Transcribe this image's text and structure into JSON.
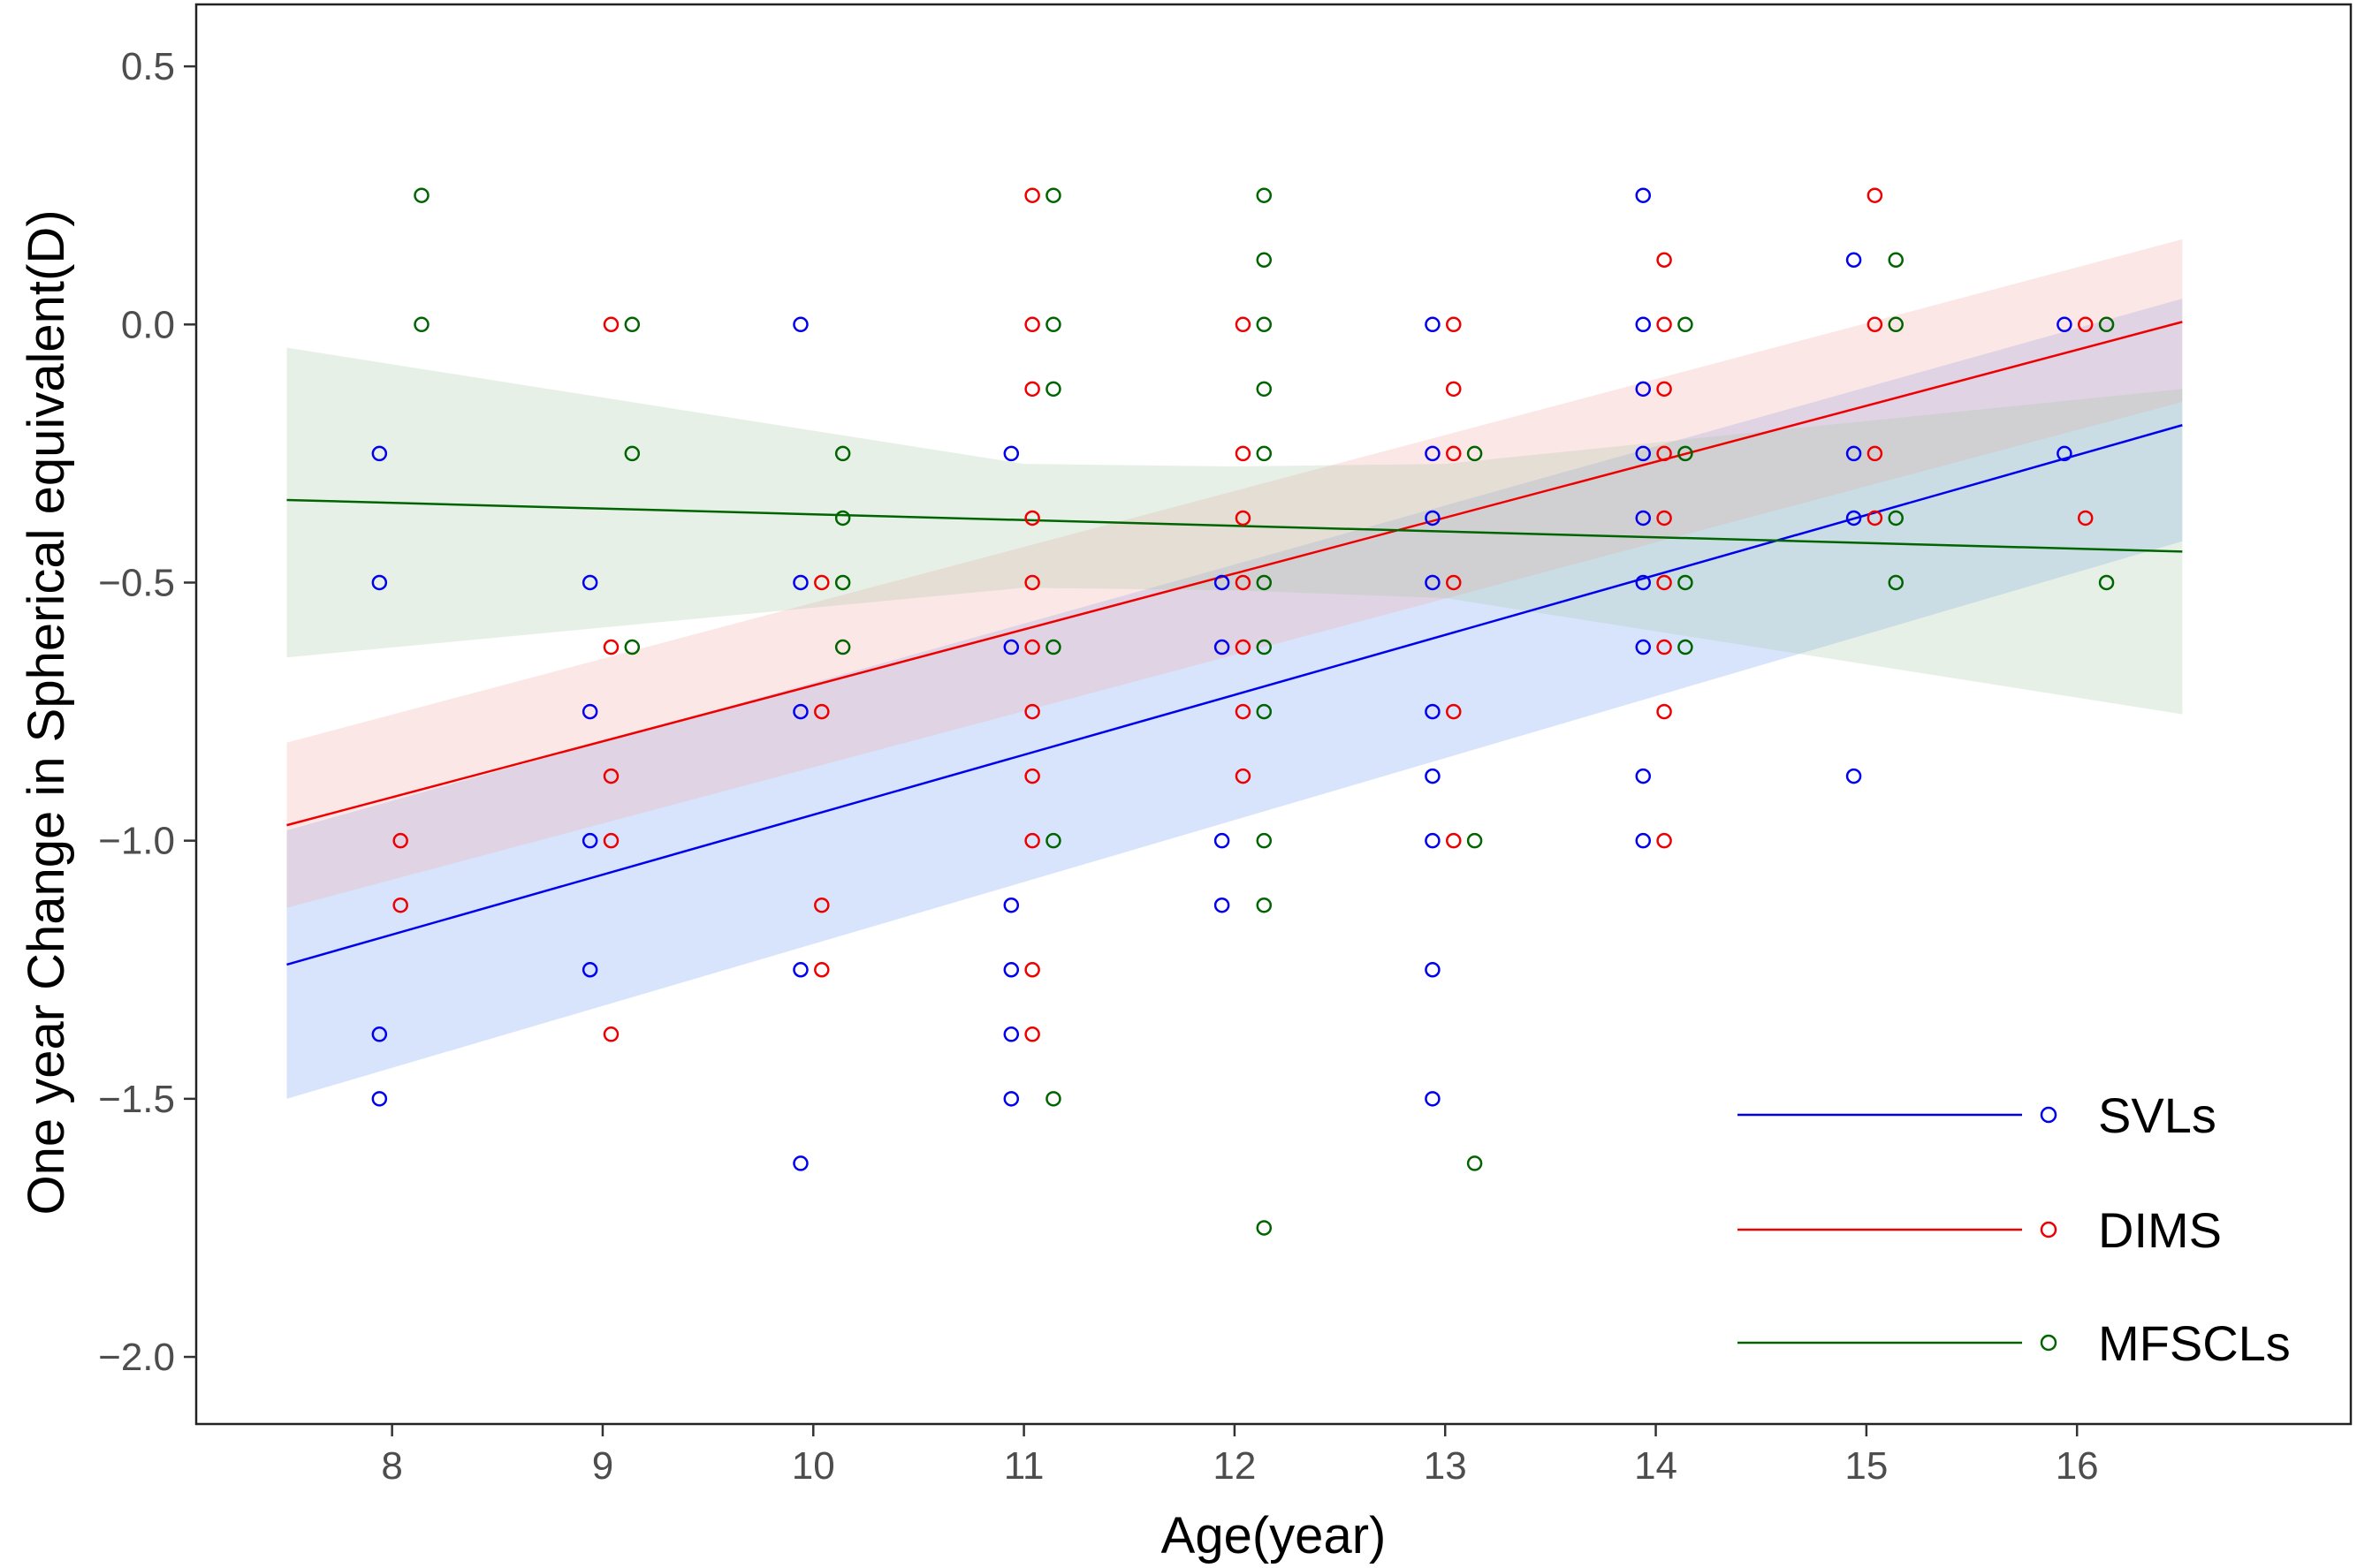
{
  "chart_data": {
    "type": "scatter",
    "xlabel": "Age(year)",
    "ylabel": "One year Change in Spherical equivalent(D)",
    "xlim": [
      7.07,
      17.3
    ],
    "ylim": [
      -2.13,
      0.62
    ],
    "xticks": [
      8,
      9,
      10,
      11,
      12,
      13,
      14,
      15,
      16
    ],
    "yticks": [
      0.5,
      0.0,
      -0.5,
      -1.0,
      -1.5,
      -2.0
    ],
    "ytick_labels": [
      "0.5",
      "0.0",
      "−0.5",
      "−1.0",
      "−1.5",
      "−2.0"
    ],
    "grid": false,
    "legend_position": "bottom-right",
    "series": [
      {
        "name": "SVLs",
        "color": "#0000ee",
        "fill_color": "#6f9ff0",
        "x_offset": -0.06,
        "points": [
          [
            8,
            -0.25
          ],
          [
            8,
            -0.5
          ],
          [
            8,
            -1.375
          ],
          [
            8,
            -1.5
          ],
          [
            9,
            -0.5
          ],
          [
            9,
            -0.75
          ],
          [
            9,
            -1.0
          ],
          [
            9,
            -1.25
          ],
          [
            10,
            0.0
          ],
          [
            10,
            -0.5
          ],
          [
            10,
            -0.75
          ],
          [
            10,
            -1.25
          ],
          [
            10,
            -1.625
          ],
          [
            11,
            -0.25
          ],
          [
            11,
            -0.625
          ],
          [
            11,
            -1.125
          ],
          [
            11,
            -1.25
          ],
          [
            11,
            -1.375
          ],
          [
            11,
            -1.5
          ],
          [
            12,
            -0.5
          ],
          [
            12,
            -0.625
          ],
          [
            12,
            -1.0
          ],
          [
            12,
            -1.125
          ],
          [
            13,
            0.0
          ],
          [
            13,
            -0.25
          ],
          [
            13,
            -0.375
          ],
          [
            13,
            -0.5
          ],
          [
            13,
            -0.75
          ],
          [
            13,
            -0.875
          ],
          [
            13,
            -1.0
          ],
          [
            13,
            -1.25
          ],
          [
            13,
            -1.5
          ],
          [
            14,
            0.25
          ],
          [
            14,
            0.0
          ],
          [
            14,
            -0.125
          ],
          [
            14,
            -0.25
          ],
          [
            14,
            -0.375
          ],
          [
            14,
            -0.5
          ],
          [
            14,
            -0.625
          ],
          [
            14,
            -0.875
          ],
          [
            14,
            -1.0
          ],
          [
            15,
            0.125
          ],
          [
            15,
            -0.25
          ],
          [
            15,
            -0.375
          ],
          [
            15,
            -0.875
          ],
          [
            16,
            0.0
          ],
          [
            16,
            -0.25
          ]
        ],
        "fit": {
          "x": [
            7.5,
            16.5
          ],
          "y": [
            -1.24,
            -0.195
          ]
        },
        "ci": {
          "x": [
            7.5,
            16.5
          ],
          "lower": [
            -1.5,
            -0.42
          ],
          "upper": [
            -0.98,
            0.05
          ]
        }
      },
      {
        "name": "DIMS",
        "color": "#ee0000",
        "fill_color": "#f6a8a8",
        "x_offset": 0.04,
        "points": [
          [
            8,
            -1.0
          ],
          [
            8,
            -1.125
          ],
          [
            9,
            0.0
          ],
          [
            9,
            -0.625
          ],
          [
            9,
            -0.875
          ],
          [
            9,
            -1.0
          ],
          [
            9,
            -1.375
          ],
          [
            10,
            -0.5
          ],
          [
            10,
            -0.75
          ],
          [
            10,
            -1.125
          ],
          [
            10,
            -1.25
          ],
          [
            11,
            0.25
          ],
          [
            11,
            0.0
          ],
          [
            11,
            -0.125
          ],
          [
            11,
            -0.375
          ],
          [
            11,
            -0.5
          ],
          [
            11,
            -0.625
          ],
          [
            11,
            -0.75
          ],
          [
            11,
            -0.875
          ],
          [
            11,
            -1.0
          ],
          [
            11,
            -1.25
          ],
          [
            11,
            -1.375
          ],
          [
            12,
            0.0
          ],
          [
            12,
            -0.25
          ],
          [
            12,
            -0.375
          ],
          [
            12,
            -0.5
          ],
          [
            12,
            -0.625
          ],
          [
            12,
            -0.75
          ],
          [
            12,
            -0.875
          ],
          [
            13,
            0.0
          ],
          [
            13,
            -0.125
          ],
          [
            13,
            -0.25
          ],
          [
            13,
            -0.5
          ],
          [
            13,
            -0.75
          ],
          [
            13,
            -1.0
          ],
          [
            14,
            0.125
          ],
          [
            14,
            0.0
          ],
          [
            14,
            -0.125
          ],
          [
            14,
            -0.25
          ],
          [
            14,
            -0.375
          ],
          [
            14,
            -0.5
          ],
          [
            14,
            -0.625
          ],
          [
            14,
            -0.75
          ],
          [
            14,
            -1.0
          ],
          [
            15,
            0.25
          ],
          [
            15,
            0.0
          ],
          [
            15,
            -0.25
          ],
          [
            15,
            -0.375
          ],
          [
            16,
            0.0
          ],
          [
            16,
            -0.375
          ]
        ],
        "fit": {
          "x": [
            7.5,
            16.5
          ],
          "y": [
            -0.97,
            0.005
          ]
        },
        "ci": {
          "x": [
            7.5,
            16.5
          ],
          "lower": [
            -1.13,
            -0.15
          ],
          "upper": [
            -0.81,
            0.165
          ]
        }
      },
      {
        "name": "MFSCLs",
        "color": "#006400",
        "fill_color": "#a8c9a8",
        "x_offset": 0.14,
        "points": [
          [
            8,
            0.25
          ],
          [
            8,
            0.0
          ],
          [
            9,
            0.0
          ],
          [
            9,
            -0.25
          ],
          [
            9,
            -0.625
          ],
          [
            10,
            -0.25
          ],
          [
            10,
            -0.375
          ],
          [
            10,
            -0.5
          ],
          [
            10,
            -0.625
          ],
          [
            11,
            0.25
          ],
          [
            11,
            0.0
          ],
          [
            11,
            -0.125
          ],
          [
            11,
            -0.625
          ],
          [
            11,
            -1.0
          ],
          [
            11,
            -1.5
          ],
          [
            12,
            0.25
          ],
          [
            12,
            0.125
          ],
          [
            12,
            0.0
          ],
          [
            12,
            -0.125
          ],
          [
            12,
            -0.25
          ],
          [
            12,
            -0.5
          ],
          [
            12,
            -0.625
          ],
          [
            12,
            -0.75
          ],
          [
            12,
            -1.0
          ],
          [
            12,
            -1.125
          ],
          [
            12,
            -1.75
          ],
          [
            13,
            -0.25
          ],
          [
            13,
            -1.0
          ],
          [
            13,
            -1.625
          ],
          [
            14,
            0.0
          ],
          [
            14,
            -0.25
          ],
          [
            14,
            -0.5
          ],
          [
            14,
            -0.625
          ],
          [
            15,
            0.125
          ],
          [
            15,
            0.0
          ],
          [
            15,
            -0.375
          ],
          [
            15,
            -0.5
          ],
          [
            16,
            0.0
          ],
          [
            16,
            -0.5
          ]
        ],
        "fit": {
          "x": [
            7.5,
            16.5
          ],
          "y": [
            -0.34,
            -0.44
          ]
        },
        "ci": {
          "x": [
            7.5,
            11.0,
            12.0,
            13.0,
            16.5
          ],
          "lower": [
            -0.645,
            -0.51,
            -0.515,
            -0.53,
            -0.755
          ],
          "upper": [
            -0.045,
            -0.27,
            -0.275,
            -0.27,
            -0.125
          ]
        }
      }
    ]
  }
}
